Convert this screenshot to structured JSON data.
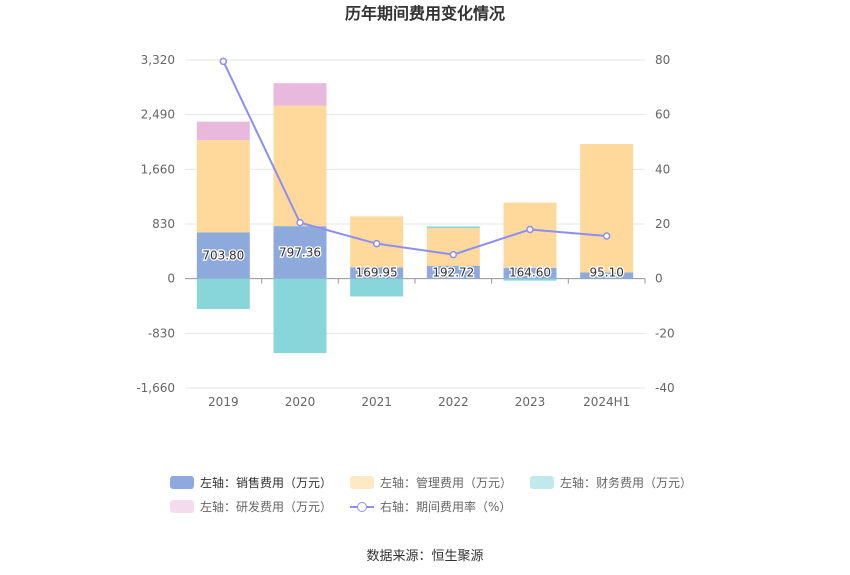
{
  "chart_data": {
    "type": "bar",
    "title": "历年期间费用变化情况",
    "categories": [
      "2019",
      "2020",
      "2021",
      "2022",
      "2023",
      "2024H1"
    ],
    "left_axis": {
      "min": -1660,
      "max": 3320,
      "ticks": [
        "3,320",
        "2,490",
        "1,660",
        "830",
        "0",
        "-830",
        "-1,660"
      ]
    },
    "right_axis": {
      "min": -40,
      "max": 80,
      "ticks": [
        "80",
        "60",
        "40",
        "20",
        "0",
        "-20",
        "-40"
      ]
    },
    "series": [
      {
        "name": "左轴：销售费用（万元）",
        "axis": "left",
        "stack": "cost",
        "color": "#8eaadc",
        "values": [
          703.8,
          797.36,
          169.95,
          192.72,
          164.6,
          95.1
        ],
        "labels": [
          "703.80",
          "797.36",
          "169.95",
          "192.72",
          "164.60",
          "95.10"
        ]
      },
      {
        "name": "左轴：管理费用（万元）",
        "axis": "left",
        "stack": "cost",
        "color": "#ffd99b",
        "values": [
          1400,
          1830,
          775,
          575,
          990,
          1950
        ]
      },
      {
        "name": "左轴：财务费用（万元）",
        "axis": "left",
        "stack": "cost",
        "color": "#88d6d9",
        "values": [
          -460,
          -1130,
          -270,
          25,
          -30,
          0
        ]
      },
      {
        "name": "左轴：研发费用（万元）",
        "axis": "left",
        "stack": "cost",
        "color": "#e8b9dc",
        "values": [
          280,
          340,
          0,
          0,
          0,
          0
        ]
      },
      {
        "name": "右轴：期间费用率（%）",
        "axis": "right",
        "type": "line",
        "color": "#8b8ff5",
        "values": [
          79.5,
          20.5,
          12.8,
          8.8,
          18.0,
          15.6
        ]
      }
    ],
    "legend_position": "bottom",
    "grid": true
  },
  "footer": {
    "source": "数据来源：恒生聚源"
  }
}
